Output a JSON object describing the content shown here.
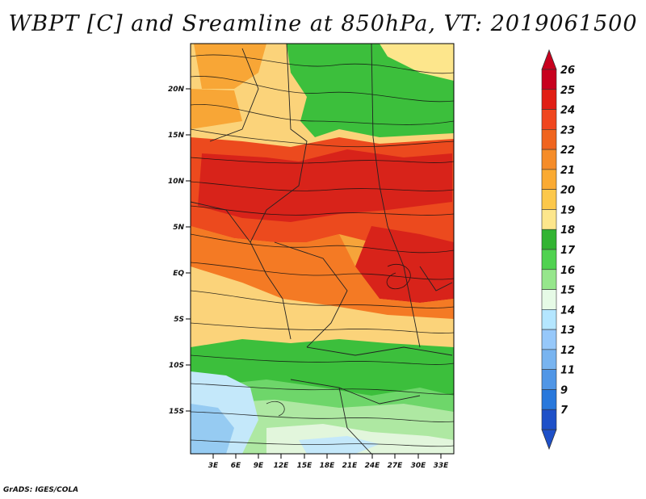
{
  "title": "WBPT [C] and Sreamline at 850hPa, VT: 2019061500",
  "footer": "GrADS: IGES/COLA",
  "lat_labels": [
    "20N",
    "15N",
    "10N",
    "5N",
    "EQ",
    "5S",
    "10S",
    "15S"
  ],
  "lon_labels": [
    "3E",
    "6E",
    "9E",
    "12E",
    "15E",
    "18E",
    "21E",
    "24E",
    "27E",
    "30E",
    "33E"
  ],
  "colorbar": {
    "levels": [
      "26",
      "25",
      "24",
      "23",
      "22",
      "21",
      "20",
      "19",
      "18",
      "17",
      "16",
      "15",
      "14",
      "13",
      "12",
      "11",
      "9",
      "7"
    ],
    "colors": [
      "#c8001e",
      "#e11e14",
      "#f0461e",
      "#f0641e",
      "#f58c28",
      "#faaa32",
      "#fcc84b",
      "#fde68c",
      "#32b432",
      "#50d250",
      "#96e68c",
      "#e6fae6",
      "#b4e6ff",
      "#96c8fa",
      "#78b4f0",
      "#5096e6",
      "#2878dc",
      "#1e50c8"
    ]
  },
  "legend_colors": {
    "deep_red": "#d8231a",
    "red": "#ec4a1e",
    "orange": "#f47a24",
    "lt_orange": "#f8a636",
    "tan": "#fbd37a",
    "pale": "#fdeab0",
    "green": "#3cbf3c",
    "mid_green": "#6ed66a",
    "lt_green": "#aee8a2",
    "pale_green": "#e2f6dc",
    "lt_blue": "#c4e8fa",
    "blue": "#96cbf2"
  }
}
